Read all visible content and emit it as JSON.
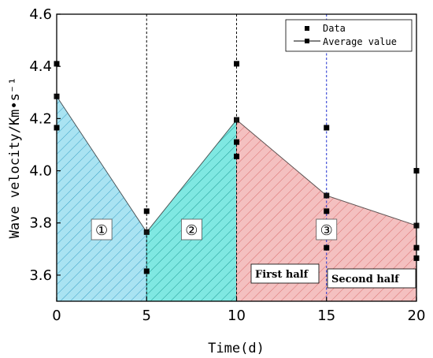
{
  "chart_data": {
    "type": "scatter",
    "xlabel": "Time(d)",
    "ylabel": "Wave velocity/Km•s⁻¹",
    "xlim": [
      0,
      20
    ],
    "ylim": [
      3.5,
      4.6
    ],
    "xticks": [
      "0",
      "5",
      "10",
      "15",
      "20"
    ],
    "yticks": [
      "3.6",
      "3.8",
      "4.0",
      "4.2",
      "4.4",
      "4.6"
    ],
    "x_tick_values": [
      0,
      5,
      10,
      15,
      20
    ],
    "y_tick_values": [
      3.6,
      3.8,
      4.0,
      4.2,
      4.4,
      4.6
    ],
    "legend_position": "top-right",
    "grid": false,
    "series": [
      {
        "name": "Data",
        "marker": "square",
        "points": [
          [
            0,
            4.41
          ],
          [
            0,
            4.285
          ],
          [
            0,
            4.165
          ],
          [
            5,
            3.845
          ],
          [
            5,
            3.765
          ],
          [
            5,
            3.615
          ],
          [
            10,
            4.41
          ],
          [
            10,
            4.195
          ],
          [
            10,
            4.11
          ],
          [
            10,
            4.055
          ],
          [
            15,
            4.165
          ],
          [
            15,
            3.905
          ],
          [
            15,
            3.845
          ],
          [
            15,
            3.705
          ],
          [
            20,
            4.0
          ],
          [
            20,
            3.79
          ],
          [
            20,
            3.705
          ],
          [
            20,
            3.665
          ]
        ]
      },
      {
        "name": "Average value",
        "marker": "square-line",
        "x": [
          0,
          5,
          10,
          15,
          20
        ],
        "y": [
          4.285,
          3.765,
          4.195,
          3.905,
          3.79
        ]
      }
    ],
    "regions": [
      {
        "label": "①",
        "x_range": [
          0,
          5
        ],
        "color": "#a9e3f2",
        "hatch": "#3a9fc4"
      },
      {
        "label": "②",
        "x_range": [
          5,
          10
        ],
        "color": "#7fe8e2",
        "hatch": "#1f9c96"
      },
      {
        "label": "③",
        "x_range": [
          10,
          20
        ],
        "color": "#f4c0c0",
        "hatch": "#d96c6c"
      }
    ],
    "vertical_lines": [
      {
        "x": 5,
        "style": "dashed",
        "color": "#000000"
      },
      {
        "x": 10,
        "style": "dashed",
        "color": "#000000"
      },
      {
        "x": 15,
        "style": "dashed",
        "color": "#1f2fd0"
      }
    ],
    "annotations": [
      {
        "text": "First half"
      },
      {
        "text": "Second half"
      }
    ]
  }
}
